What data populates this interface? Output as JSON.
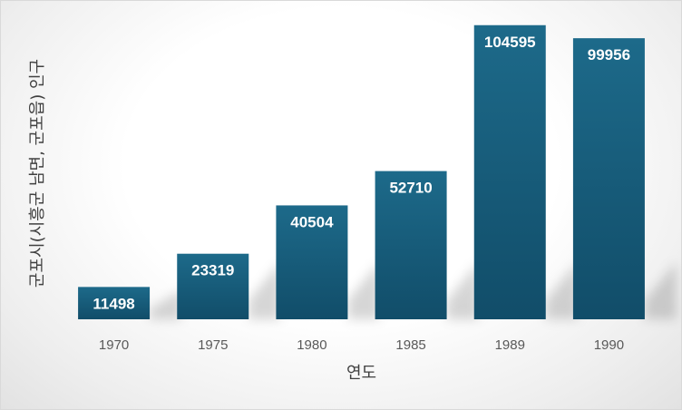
{
  "chart_data": {
    "type": "bar",
    "categories": [
      "1970",
      "1975",
      "1980",
      "1985",
      "1989",
      "1990"
    ],
    "values": [
      11498,
      23319,
      40504,
      52710,
      104595,
      99956
    ],
    "title": "",
    "xlabel": "연도",
    "ylabel": "군포시(시흥군 남면, 군포읍) 인구",
    "ylim": [
      0,
      110000
    ],
    "grid": false,
    "legend": "none",
    "colors": {
      "bar_top": "#1d6a8a",
      "bar_bottom": "#114d69"
    }
  }
}
